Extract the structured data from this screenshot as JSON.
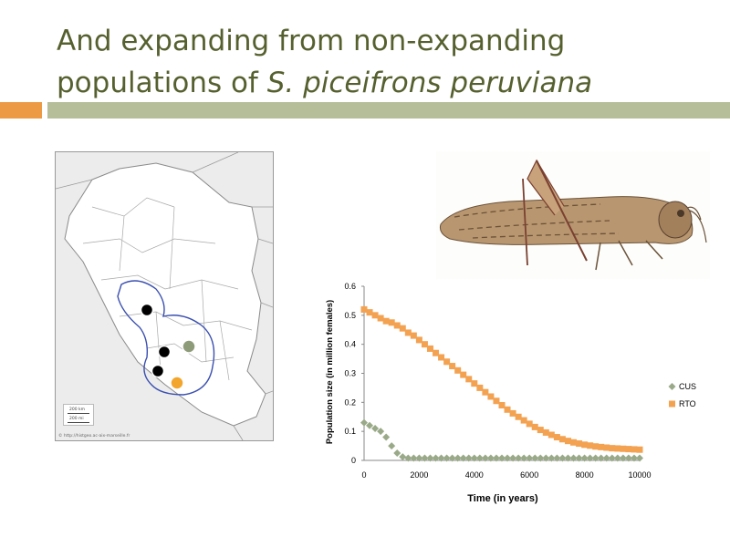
{
  "title": {
    "line1": "And expanding from non-expanding",
    "line2_prefix": "populations of ",
    "line2_species": "S. piceifrons peruviana"
  },
  "map": {
    "scale_km": "200 km",
    "scale_mi": "200 mi",
    "credit": "© http://histgeo.ac-aix-marseille.fr",
    "points": [
      {
        "color": "#000000"
      },
      {
        "color": "#8e9b79"
      },
      {
        "color": "#000000"
      },
      {
        "color": "#000000"
      },
      {
        "color": "#f3a62e"
      }
    ]
  },
  "chart_data": {
    "type": "scatter",
    "xlabel": "Time (in years)",
    "ylabel": "Population size (in million females)",
    "xlim": [
      0,
      10000
    ],
    "ylim": [
      0,
      0.6
    ],
    "xticks": [
      0,
      2000,
      4000,
      6000,
      8000,
      10000
    ],
    "yticks": [
      0,
      0.1,
      0.2,
      0.3,
      0.4,
      0.5,
      0.6
    ],
    "legend_position": "right",
    "series": [
      {
        "name": "CUS",
        "marker": "diamond",
        "color": "#9aaa88",
        "x": [
          0,
          200,
          400,
          600,
          800,
          1000,
          1200,
          1400,
          1600,
          1800,
          2000,
          2200,
          2400,
          2600,
          2800,
          3000,
          3200,
          3400,
          3600,
          3800,
          4000,
          4200,
          4400,
          4600,
          4800,
          5000,
          5200,
          5400,
          5600,
          5800,
          6000,
          6200,
          6400,
          6600,
          6800,
          7000,
          7200,
          7400,
          7600,
          7800,
          8000,
          8200,
          8400,
          8600,
          8800,
          9000,
          9200,
          9400,
          9600,
          9800,
          10000
        ],
        "y": [
          0.13,
          0.12,
          0.11,
          0.1,
          0.08,
          0.05,
          0.025,
          0.012,
          0.008,
          0.008,
          0.008,
          0.008,
          0.008,
          0.008,
          0.008,
          0.008,
          0.008,
          0.008,
          0.008,
          0.008,
          0.008,
          0.008,
          0.008,
          0.008,
          0.008,
          0.008,
          0.008,
          0.008,
          0.008,
          0.008,
          0.008,
          0.008,
          0.008,
          0.008,
          0.008,
          0.008,
          0.008,
          0.008,
          0.008,
          0.008,
          0.008,
          0.008,
          0.008,
          0.008,
          0.008,
          0.008,
          0.008,
          0.008,
          0.008,
          0.008,
          0.008
        ]
      },
      {
        "name": "RTO",
        "marker": "square",
        "color": "#f3a252",
        "x": [
          0,
          200,
          400,
          600,
          800,
          1000,
          1200,
          1400,
          1600,
          1800,
          2000,
          2200,
          2400,
          2600,
          2800,
          3000,
          3200,
          3400,
          3600,
          3800,
          4000,
          4200,
          4400,
          4600,
          4800,
          5000,
          5200,
          5400,
          5600,
          5800,
          6000,
          6200,
          6400,
          6600,
          6800,
          7000,
          7200,
          7400,
          7600,
          7800,
          8000,
          8200,
          8400,
          8600,
          8800,
          9000,
          9200,
          9400,
          9600,
          9800,
          10000
        ],
        "y": [
          0.52,
          0.51,
          0.5,
          0.49,
          0.48,
          0.475,
          0.465,
          0.455,
          0.44,
          0.43,
          0.415,
          0.4,
          0.385,
          0.37,
          0.355,
          0.34,
          0.325,
          0.31,
          0.295,
          0.28,
          0.265,
          0.25,
          0.235,
          0.22,
          0.205,
          0.19,
          0.175,
          0.162,
          0.15,
          0.138,
          0.126,
          0.115,
          0.105,
          0.096,
          0.088,
          0.08,
          0.073,
          0.067,
          0.062,
          0.058,
          0.054,
          0.051,
          0.048,
          0.046,
          0.044,
          0.042,
          0.041,
          0.04,
          0.039,
          0.038,
          0.037
        ]
      }
    ]
  }
}
